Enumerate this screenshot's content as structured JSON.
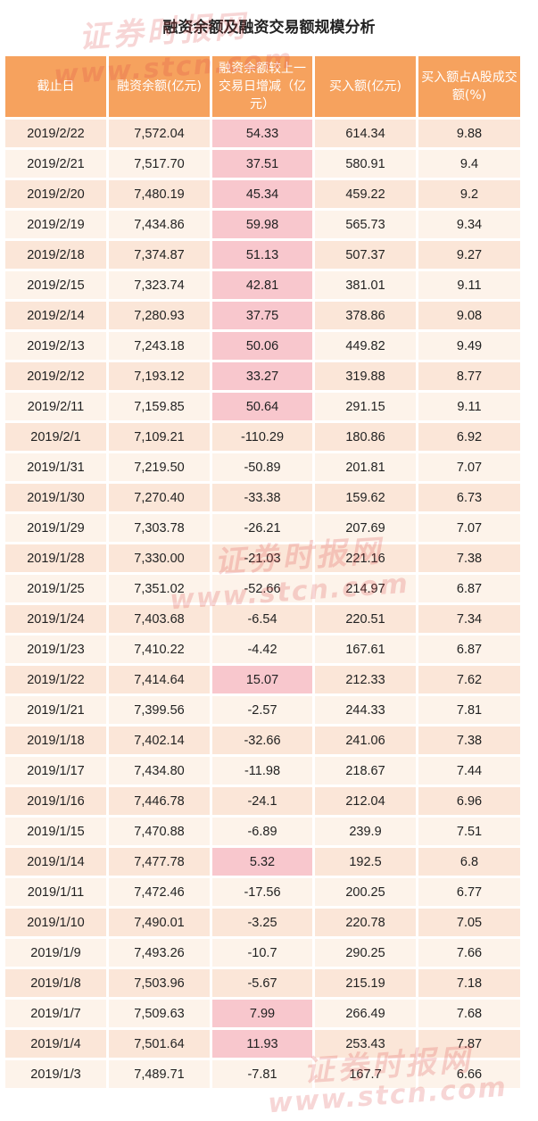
{
  "title": "融资余额及融资交易额规模分析",
  "watermark": {
    "cn": "证券时报网",
    "url": "www.stcn.com",
    "color": "#dc4646"
  },
  "colors": {
    "header": "#f6a25e",
    "row_odd": "#fbe6d8",
    "row_even": "#fdf3ea",
    "positive_change": "#f8c7cd"
  },
  "headers": [
    "截止日",
    "融资余额(亿元)",
    "融资余额较上一交易日增减（亿元）",
    "买入额(亿元)",
    "买入额占A股成交额(%)"
  ],
  "rows": [
    [
      "2019/2/22",
      "7,572.04",
      "54.33",
      "614.34",
      "9.88"
    ],
    [
      "2019/2/21",
      "7,517.70",
      "37.51",
      "580.91",
      "9.4"
    ],
    [
      "2019/2/20",
      "7,480.19",
      "45.34",
      "459.22",
      "9.2"
    ],
    [
      "2019/2/19",
      "7,434.86",
      "59.98",
      "565.73",
      "9.34"
    ],
    [
      "2019/2/18",
      "7,374.87",
      "51.13",
      "507.37",
      "9.27"
    ],
    [
      "2019/2/15",
      "7,323.74",
      "42.81",
      "381.01",
      "9.11"
    ],
    [
      "2019/2/14",
      "7,280.93",
      "37.75",
      "378.86",
      "9.08"
    ],
    [
      "2019/2/13",
      "7,243.18",
      "50.06",
      "449.82",
      "9.49"
    ],
    [
      "2019/2/12",
      "7,193.12",
      "33.27",
      "319.88",
      "8.77"
    ],
    [
      "2019/2/11",
      "7,159.85",
      "50.64",
      "291.15",
      "9.11"
    ],
    [
      "2019/2/1",
      "7,109.21",
      "-110.29",
      "180.86",
      "6.92"
    ],
    [
      "2019/1/31",
      "7,219.50",
      "-50.89",
      "201.81",
      "7.07"
    ],
    [
      "2019/1/30",
      "7,270.40",
      "-33.38",
      "159.62",
      "6.73"
    ],
    [
      "2019/1/29",
      "7,303.78",
      "-26.21",
      "207.69",
      "7.07"
    ],
    [
      "2019/1/28",
      "7,330.00",
      "-21.03",
      "221.16",
      "7.38"
    ],
    [
      "2019/1/25",
      "7,351.02",
      "-52.66",
      "214.97",
      "6.87"
    ],
    [
      "2019/1/24",
      "7,403.68",
      "-6.54",
      "220.51",
      "7.34"
    ],
    [
      "2019/1/23",
      "7,410.22",
      "-4.42",
      "167.61",
      "6.87"
    ],
    [
      "2019/1/22",
      "7,414.64",
      "15.07",
      "212.33",
      "7.62"
    ],
    [
      "2019/1/21",
      "7,399.56",
      "-2.57",
      "244.33",
      "7.81"
    ],
    [
      "2019/1/18",
      "7,402.14",
      "-32.66",
      "241.06",
      "7.38"
    ],
    [
      "2019/1/17",
      "7,434.80",
      "-11.98",
      "218.67",
      "7.44"
    ],
    [
      "2019/1/16",
      "7,446.78",
      "-24.1",
      "212.04",
      "6.96"
    ],
    [
      "2019/1/15",
      "7,470.88",
      "-6.89",
      "239.9",
      "7.51"
    ],
    [
      "2019/1/14",
      "7,477.78",
      "5.32",
      "192.5",
      "6.8"
    ],
    [
      "2019/1/11",
      "7,472.46",
      "-17.56",
      "200.25",
      "6.77"
    ],
    [
      "2019/1/10",
      "7,490.01",
      "-3.25",
      "220.78",
      "7.05"
    ],
    [
      "2019/1/9",
      "7,493.26",
      "-10.7",
      "290.25",
      "7.66"
    ],
    [
      "2019/1/8",
      "7,503.96",
      "-5.67",
      "215.19",
      "7.18"
    ],
    [
      "2019/1/7",
      "7,509.63",
      "7.99",
      "266.49",
      "7.68"
    ],
    [
      "2019/1/4",
      "7,501.64",
      "11.93",
      "253.43",
      "7.87"
    ],
    [
      "2019/1/3",
      "7,489.71",
      "-7.81",
      "167.7",
      "6.66"
    ]
  ]
}
